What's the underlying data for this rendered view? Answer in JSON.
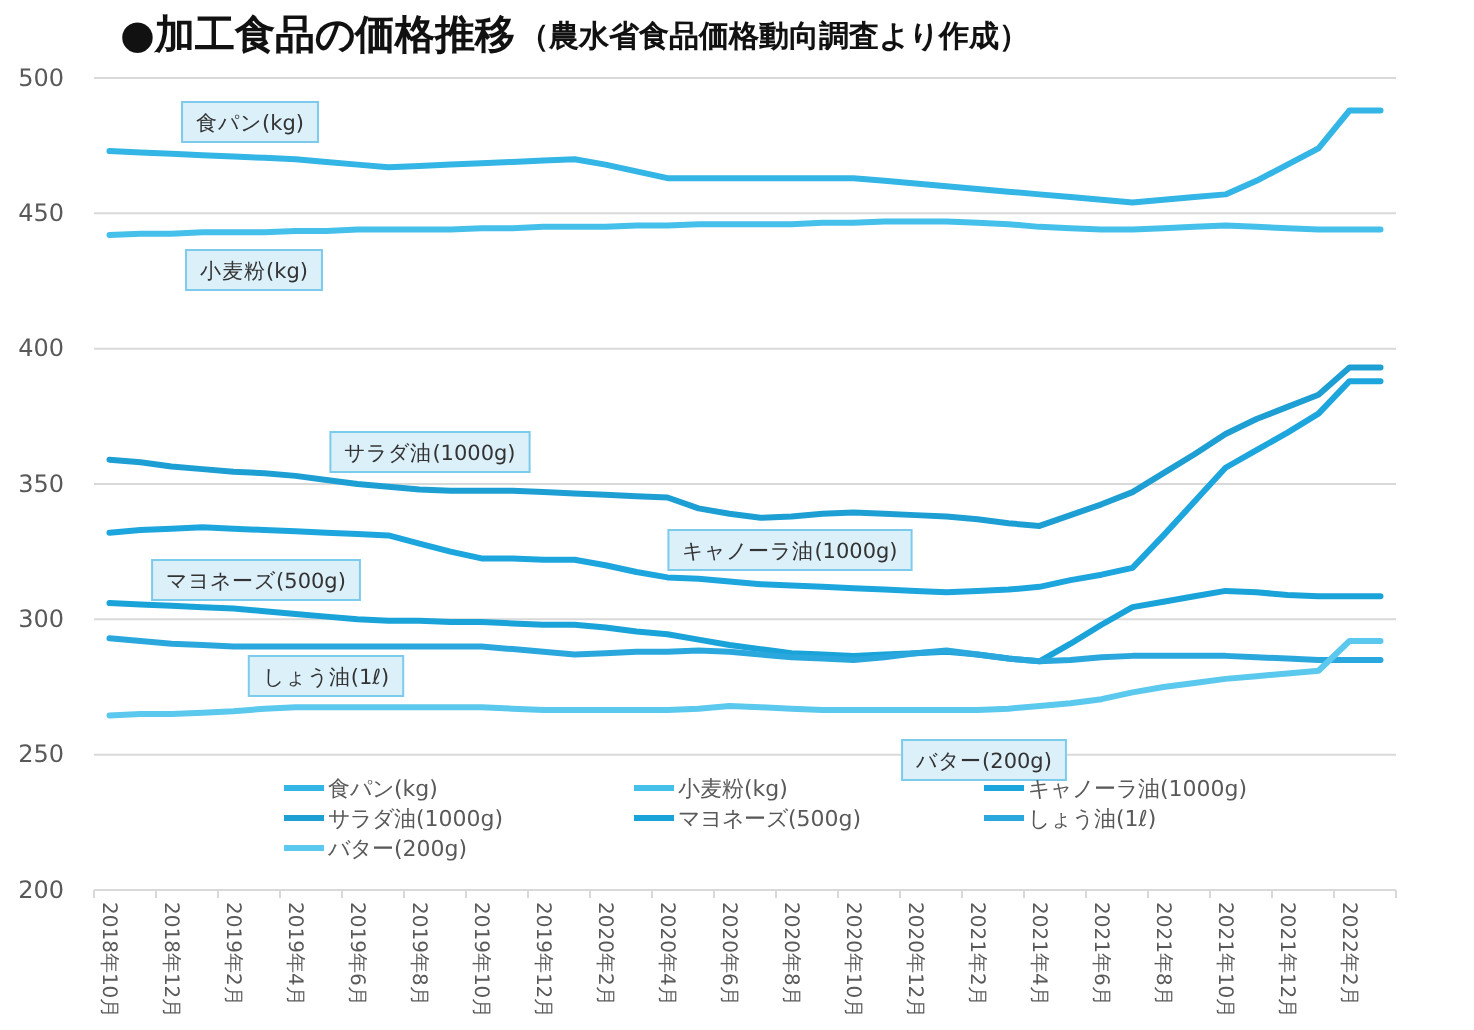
{
  "chart_data": {
    "type": "line",
    "title": "●加工食品の価格推移",
    "subtitle": "（農水省食品価格動向調査より作成）",
    "categories": [
      "2018年10月",
      null,
      "2018年12月",
      null,
      "2019年2月",
      null,
      "2019年4月",
      null,
      "2019年6月",
      null,
      "2019年8月",
      null,
      "2019年10月",
      null,
      "2019年12月",
      null,
      "2020年2月",
      null,
      "2020年4月",
      null,
      "2020年6月",
      null,
      "2020年8月",
      null,
      "2020年10月",
      null,
      "2020年12月",
      null,
      "2021年2月",
      null,
      "2021年4月",
      null,
      "2021年6月",
      null,
      "2021年8月",
      null,
      "2021年10月",
      null,
      "2021年12月",
      null,
      "2022年2月",
      null
    ],
    "ylim": [
      200,
      500
    ],
    "yticks": [
      200,
      250,
      300,
      350,
      400,
      450,
      500
    ],
    "grid": "y",
    "legend": "bottom",
    "line_style": "solid",
    "marker": "none",
    "series": [
      {
        "name": "食パン(kg)",
        "color": "#33b5e5",
        "values": [
          473,
          472.5,
          472,
          471.5,
          471,
          470.5,
          470,
          469,
          468,
          467,
          467.5,
          468,
          468.5,
          469,
          469.5,
          470,
          468,
          465.5,
          463,
          463,
          463,
          463,
          463,
          463,
          463,
          462,
          461,
          460,
          459,
          458,
          457,
          456,
          455,
          454,
          455,
          456,
          457,
          462,
          468,
          474,
          488,
          488
        ]
      },
      {
        "name": "小麦粉(kg)",
        "color": "#45c0ea",
        "values": [
          442,
          442.5,
          442.5,
          443,
          443,
          443,
          443.5,
          443.5,
          444,
          444,
          444,
          444,
          444.5,
          444.5,
          445,
          445,
          445,
          445.5,
          445.5,
          446,
          446,
          446,
          446,
          446.5,
          446.5,
          447,
          447,
          447,
          446.5,
          446,
          445,
          444.5,
          444,
          444,
          444.5,
          445,
          445.5,
          445,
          444.5,
          444,
          444,
          444
        ]
      },
      {
        "name": "キャノーラ油(1000g)",
        "color": "#1ca6dd",
        "values": [
          332,
          333,
          333.5,
          334,
          333.5,
          333,
          332.5,
          332,
          331.5,
          331,
          328,
          325,
          322.5,
          322.5,
          322,
          322,
          320,
          317.5,
          315.5,
          315,
          314,
          313,
          312.5,
          312,
          311.5,
          311,
          310.5,
          310,
          310.5,
          311,
          312,
          314.5,
          316.5,
          319,
          331,
          343.5,
          356,
          362.5,
          369,
          376,
          388,
          388
        ]
      },
      {
        "name": "サラダ油(1000g)",
        "color": "#1e9fd4",
        "values": [
          359,
          358,
          356.5,
          355.5,
          354.5,
          354,
          353,
          351.5,
          350,
          349,
          348,
          347.5,
          347.5,
          347.5,
          347,
          346.5,
          346,
          345.5,
          345,
          341,
          339,
          337.5,
          338,
          339,
          339.5,
          339,
          338.5,
          338,
          337,
          335.5,
          334.5,
          338.5,
          342.5,
          347,
          354,
          361,
          368.5,
          374,
          378.5,
          383,
          393,
          393
        ]
      },
      {
        "name": "マヨネーズ(500g)",
        "color": "#1aa3d9",
        "values": [
          306,
          305.5,
          305,
          304.5,
          304,
          303,
          302,
          301,
          300,
          299.5,
          299.5,
          299,
          299,
          298.5,
          298,
          298,
          297,
          295.5,
          294.5,
          292.5,
          290.5,
          289,
          287.5,
          287,
          286.5,
          287,
          287.5,
          288,
          287,
          285.5,
          284.5,
          291,
          298,
          304.5,
          306.5,
          308.5,
          310.5,
          310,
          309,
          308.5,
          308.5,
          308.5
        ]
      },
      {
        "name": "しょう油(1ℓ)",
        "color": "#2aa8de",
        "values": [
          293,
          292,
          291,
          290.5,
          290,
          290,
          290,
          290,
          290,
          290,
          290,
          290,
          290,
          289,
          288,
          287,
          287.5,
          288,
          288,
          288.5,
          288,
          287,
          286,
          285.5,
          285,
          286,
          287.5,
          288.5,
          287,
          285.5,
          284.5,
          285,
          286,
          286.5,
          286.5,
          286.5,
          286.5,
          286,
          285.5,
          285,
          285,
          285
        ]
      },
      {
        "name": "バター(200g)",
        "color": "#5bc8ee",
        "values": [
          264.5,
          265,
          265,
          265.5,
          266,
          267,
          267.5,
          267.5,
          267.5,
          267.5,
          267.5,
          267.5,
          267.5,
          267,
          266.5,
          266.5,
          266.5,
          266.5,
          266.5,
          267,
          268,
          267.5,
          267,
          266.5,
          266.5,
          266.5,
          266.5,
          266.5,
          266.5,
          267,
          268,
          269,
          270.5,
          273,
          275,
          276.5,
          278,
          279,
          280,
          281,
          292,
          292
        ]
      }
    ],
    "annotations": [
      "食パン(kg)",
      "小麦粉(kg)",
      "サラダ油(1000g)",
      "キャノーラ油(1000g)",
      "マヨネーズ(500g)",
      "しょう油(1ℓ)",
      "バター(200g)"
    ]
  }
}
